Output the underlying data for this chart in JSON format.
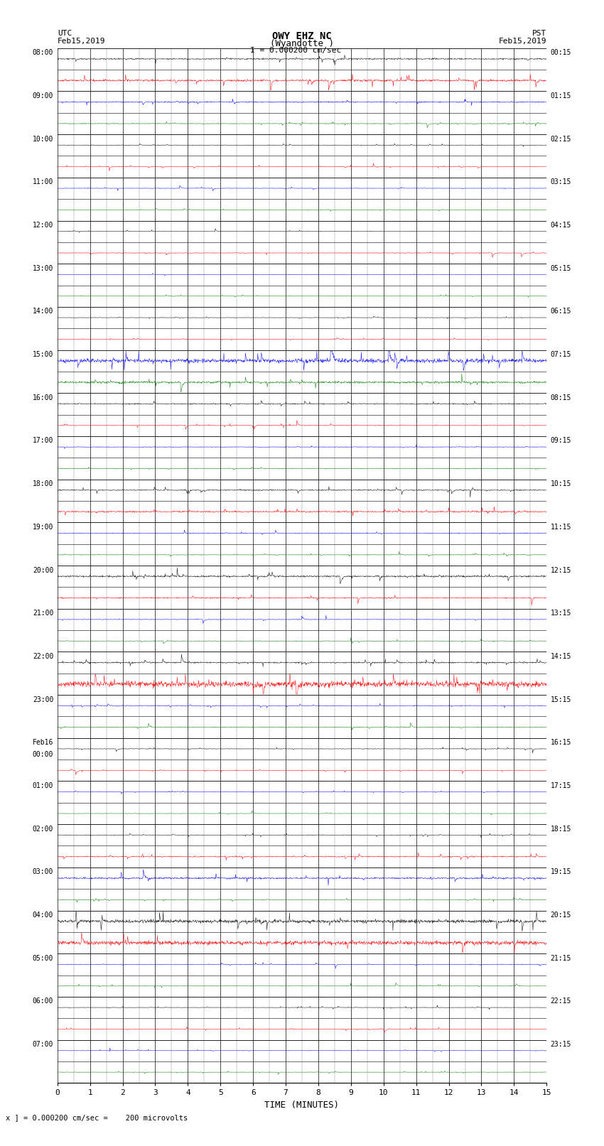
{
  "title_line1": "OWY EHZ NC",
  "title_line2": "(Wyandotte )",
  "scale_text": "I = 0.000200 cm/sec",
  "left_label_top": "UTC",
  "left_label_date": "Feb15,2019",
  "right_label_top": "PST",
  "right_label_date": "Feb15,2019",
  "bottom_label": "TIME (MINUTES)",
  "bottom_note": "x ] = 0.000200 cm/sec =    200 microvolts",
  "utc_times_even": [
    "08:00",
    "09:00",
    "10:00",
    "11:00",
    "12:00",
    "13:00",
    "14:00",
    "15:00",
    "16:00",
    "17:00",
    "18:00",
    "19:00",
    "20:00",
    "21:00",
    "22:00",
    "23:00",
    "Feb16\n00:00",
    "01:00",
    "02:00",
    "03:00",
    "04:00",
    "05:00",
    "06:00",
    "07:00"
  ],
  "pst_times_even": [
    "00:15",
    "01:15",
    "02:15",
    "03:15",
    "04:15",
    "05:15",
    "06:15",
    "07:15",
    "08:15",
    "09:15",
    "10:15",
    "11:15",
    "12:15",
    "13:15",
    "14:15",
    "15:15",
    "16:15",
    "17:15",
    "18:15",
    "19:15",
    "20:15",
    "21:15",
    "22:15",
    "23:15"
  ],
  "num_rows": 48,
  "x_min": 0,
  "x_max": 15,
  "seed": 42,
  "row_colors": [
    "black",
    "red",
    "blue",
    "green",
    "black",
    "red",
    "blue",
    "green",
    "black",
    "red",
    "blue",
    "green",
    "black",
    "red",
    "blue",
    "green",
    "black",
    "red",
    "blue",
    "green",
    "black",
    "red",
    "blue",
    "green",
    "black",
    "red",
    "blue",
    "green",
    "black",
    "red",
    "blue",
    "green",
    "black",
    "red",
    "blue",
    "green",
    "black",
    "red",
    "blue",
    "green",
    "black",
    "red",
    "blue",
    "green",
    "black",
    "red",
    "blue",
    "green"
  ],
  "base_noise": 0.02,
  "row_amplitudes": [
    0.08,
    0.12,
    0.06,
    0.04,
    0.03,
    0.04,
    0.03,
    0.03,
    0.03,
    0.03,
    0.03,
    0.03,
    0.03,
    0.03,
    0.03,
    0.03,
    0.03,
    0.03,
    0.03,
    0.03,
    0.04,
    0.04,
    0.03,
    0.03,
    0.2,
    0.08,
    0.06,
    0.03,
    0.06,
    0.3,
    0.03,
    0.04,
    0.05,
    0.04,
    0.03,
    0.03,
    0.08,
    0.12,
    0.04,
    0.06,
    0.25,
    0.35,
    0.05,
    0.04,
    0.03,
    0.04,
    0.03,
    0.03
  ]
}
